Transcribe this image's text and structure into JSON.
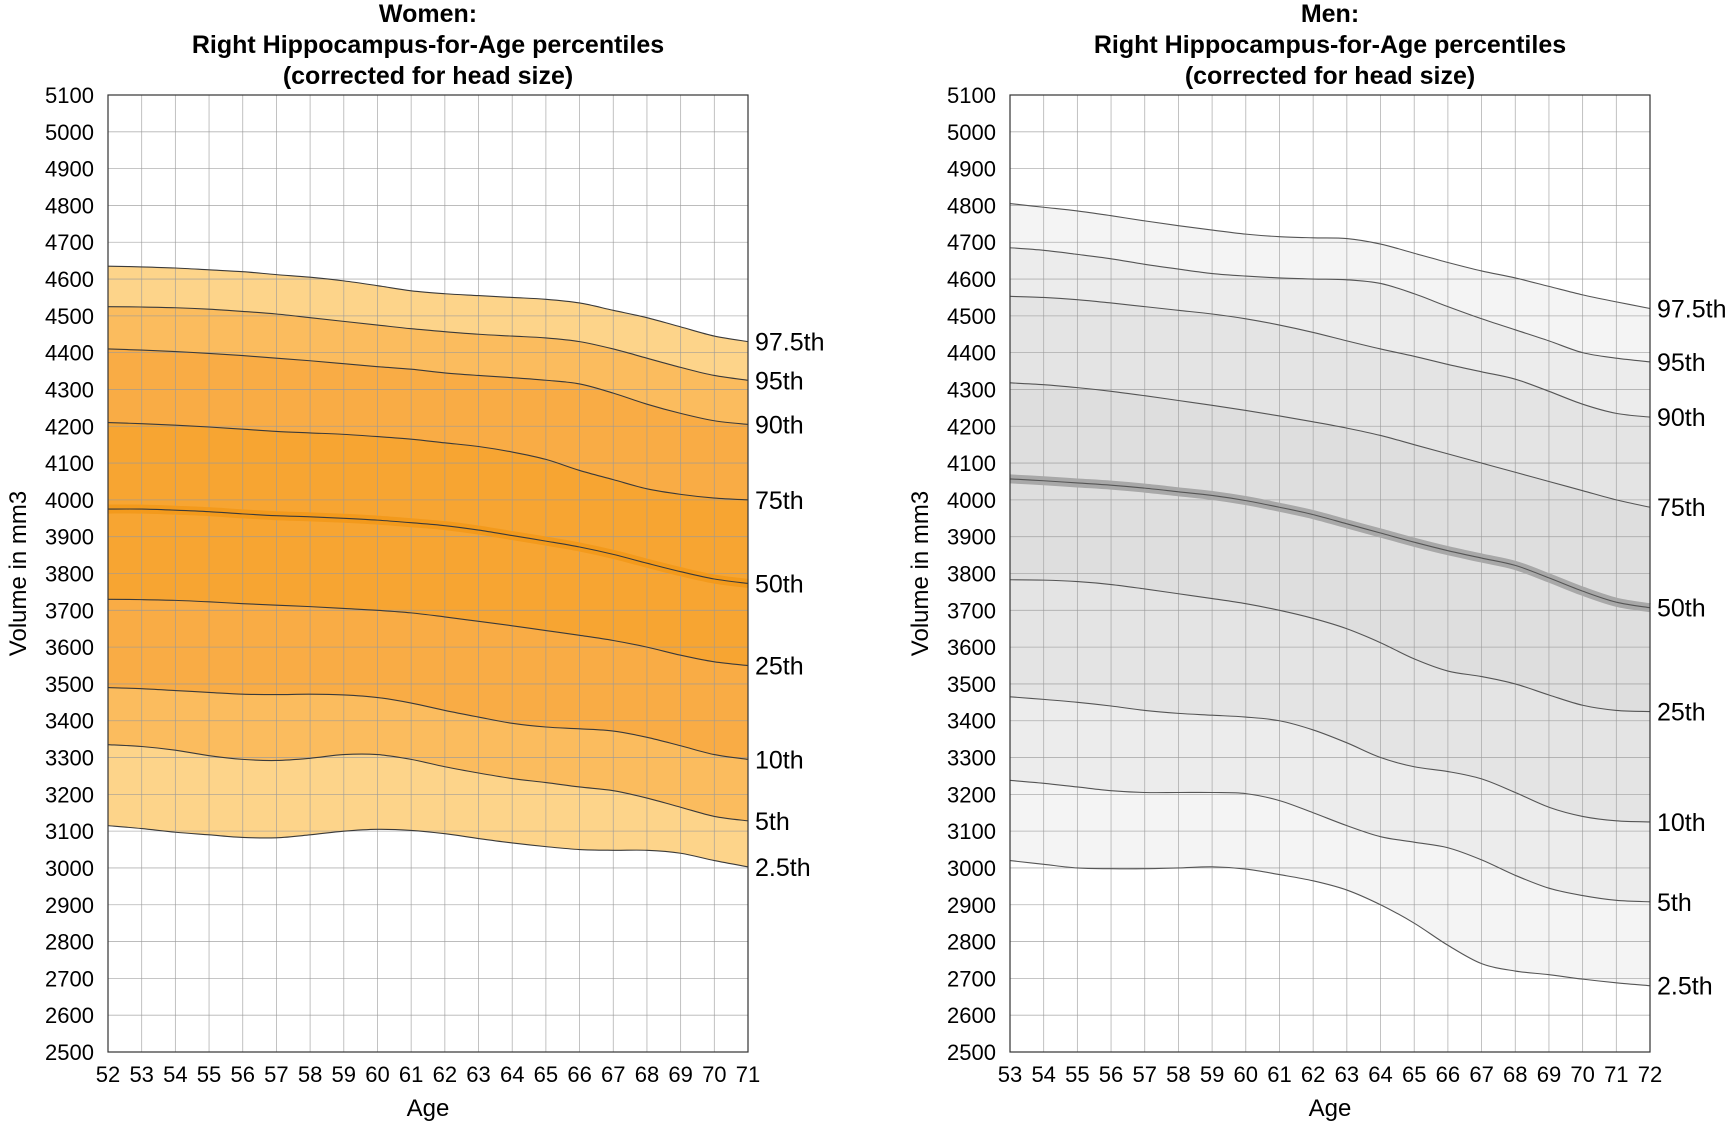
{
  "chart_data": [
    {
      "type": "area",
      "title_lines": [
        "Women:",
        "Right Hippocampus-for-Age percentiles",
        "(corrected for head size)"
      ],
      "xlabel": "Age",
      "ylabel": "Volume in mm3",
      "xlim": [
        52,
        71
      ],
      "ylim": [
        2500,
        5100
      ],
      "x_ticks": [
        52,
        53,
        54,
        55,
        56,
        57,
        58,
        59,
        60,
        61,
        62,
        63,
        64,
        65,
        66,
        67,
        68,
        69,
        70,
        71
      ],
      "y_ticks": [
        2500,
        2600,
        2700,
        2800,
        2900,
        3000,
        3100,
        3200,
        3300,
        3400,
        3500,
        3600,
        3700,
        3800,
        3900,
        4000,
        4100,
        4200,
        4300,
        4400,
        4500,
        4600,
        4700,
        4800,
        4900,
        5000,
        5100
      ],
      "grid": true,
      "colors": {
        "outer": "#fdd48a",
        "mid": "#fbbc5e",
        "inner": "#f9ac45",
        "core": "#f7a532",
        "median": "#f39a1c",
        "line": "#3a3a3a"
      },
      "series": [
        {
          "name": "97.5th",
          "x": [
            52,
            53,
            54,
            55,
            56,
            57,
            58,
            59,
            60,
            61,
            62,
            63,
            64,
            65,
            66,
            67,
            68,
            69,
            70,
            71
          ],
          "values": [
            4635,
            4633,
            4630,
            4625,
            4620,
            4612,
            4605,
            4595,
            4582,
            4568,
            4560,
            4555,
            4550,
            4545,
            4535,
            4515,
            4495,
            4470,
            4445,
            4430
          ]
        },
        {
          "name": "95th",
          "x": [
            52,
            53,
            54,
            55,
            56,
            57,
            58,
            59,
            60,
            61,
            62,
            63,
            64,
            65,
            66,
            67,
            68,
            69,
            70,
            71
          ],
          "values": [
            4525,
            4524,
            4522,
            4518,
            4512,
            4505,
            4495,
            4485,
            4475,
            4465,
            4457,
            4450,
            4445,
            4440,
            4430,
            4410,
            4385,
            4360,
            4338,
            4325
          ]
        },
        {
          "name": "90th",
          "x": [
            52,
            53,
            54,
            55,
            56,
            57,
            58,
            59,
            60,
            61,
            62,
            63,
            64,
            65,
            66,
            67,
            68,
            69,
            70,
            71
          ],
          "values": [
            4410,
            4407,
            4403,
            4398,
            4392,
            4385,
            4378,
            4370,
            4362,
            4355,
            4345,
            4338,
            4332,
            4325,
            4315,
            4290,
            4260,
            4235,
            4215,
            4205
          ]
        },
        {
          "name": "75th",
          "x": [
            52,
            53,
            54,
            55,
            56,
            57,
            58,
            59,
            60,
            61,
            62,
            63,
            64,
            65,
            66,
            67,
            68,
            69,
            70,
            71
          ],
          "values": [
            4210,
            4207,
            4203,
            4198,
            4192,
            4186,
            4182,
            4178,
            4172,
            4165,
            4155,
            4145,
            4130,
            4110,
            4080,
            4055,
            4030,
            4015,
            4005,
            4000
          ]
        },
        {
          "name": "50th",
          "x": [
            52,
            53,
            54,
            55,
            56,
            57,
            58,
            59,
            60,
            61,
            62,
            63,
            64,
            65,
            66,
            67,
            68,
            69,
            70,
            71
          ],
          "values": [
            3975,
            3975,
            3972,
            3968,
            3962,
            3957,
            3954,
            3950,
            3945,
            3938,
            3930,
            3918,
            3903,
            3888,
            3872,
            3852,
            3828,
            3805,
            3785,
            3773
          ]
        },
        {
          "name": "25th",
          "x": [
            52,
            53,
            54,
            55,
            56,
            57,
            58,
            59,
            60,
            61,
            62,
            63,
            64,
            65,
            66,
            67,
            68,
            69,
            70,
            71
          ],
          "values": [
            3730,
            3729,
            3727,
            3723,
            3718,
            3714,
            3710,
            3705,
            3700,
            3693,
            3682,
            3670,
            3658,
            3645,
            3632,
            3618,
            3600,
            3578,
            3560,
            3550
          ]
        },
        {
          "name": "10th",
          "x": [
            52,
            53,
            54,
            55,
            56,
            57,
            58,
            59,
            60,
            61,
            62,
            63,
            64,
            65,
            66,
            67,
            68,
            69,
            70,
            71
          ],
          "values": [
            3490,
            3487,
            3482,
            3477,
            3472,
            3471,
            3472,
            3470,
            3463,
            3448,
            3428,
            3410,
            3393,
            3383,
            3378,
            3372,
            3355,
            3332,
            3308,
            3295
          ]
        },
        {
          "name": "5th",
          "x": [
            52,
            53,
            54,
            55,
            56,
            57,
            58,
            59,
            60,
            61,
            62,
            63,
            64,
            65,
            66,
            67,
            68,
            69,
            70,
            71
          ],
          "values": [
            3335,
            3330,
            3320,
            3305,
            3295,
            3292,
            3298,
            3308,
            3308,
            3295,
            3275,
            3258,
            3243,
            3232,
            3220,
            3210,
            3190,
            3165,
            3140,
            3128
          ]
        },
        {
          "name": "2.5th",
          "x": [
            52,
            53,
            54,
            55,
            56,
            57,
            58,
            59,
            60,
            61,
            62,
            63,
            64,
            65,
            66,
            67,
            68,
            69,
            70,
            71
          ],
          "values": [
            3115,
            3107,
            3097,
            3090,
            3083,
            3082,
            3090,
            3100,
            3105,
            3102,
            3093,
            3080,
            3068,
            3058,
            3050,
            3048,
            3048,
            3040,
            3020,
            3003
          ]
        }
      ]
    },
    {
      "type": "area",
      "title_lines": [
        "Men:",
        "Right Hippocampus-for-Age percentiles",
        "(corrected for head size)"
      ],
      "xlabel": "Age",
      "ylabel": "Volume in mm3",
      "xlim": [
        53,
        72
      ],
      "ylim": [
        2500,
        5100
      ],
      "x_ticks": [
        53,
        54,
        55,
        56,
        57,
        58,
        59,
        60,
        61,
        62,
        63,
        64,
        65,
        66,
        67,
        68,
        69,
        70,
        71,
        72
      ],
      "y_ticks": [
        2500,
        2600,
        2700,
        2800,
        2900,
        3000,
        3100,
        3200,
        3300,
        3400,
        3500,
        3600,
        3700,
        3800,
        3900,
        4000,
        4100,
        4200,
        4300,
        4400,
        4500,
        4600,
        4700,
        4800,
        4900,
        5000,
        5100
      ],
      "grid": true,
      "colors": {
        "outer": "#f4f4f4",
        "mid": "#ececec",
        "inner": "#e4e4e4",
        "core": "#dedede",
        "median": "#a8a8a8",
        "line": "#555555"
      },
      "series": [
        {
          "name": "97.5th",
          "x": [
            53,
            54,
            55,
            56,
            57,
            58,
            59,
            60,
            61,
            62,
            63,
            64,
            65,
            66,
            67,
            68,
            69,
            70,
            71,
            72
          ],
          "values": [
            4805,
            4795,
            4785,
            4772,
            4758,
            4745,
            4733,
            4722,
            4715,
            4712,
            4710,
            4695,
            4670,
            4645,
            4622,
            4603,
            4580,
            4557,
            4538,
            4520
          ]
        },
        {
          "name": "95th",
          "x": [
            53,
            54,
            55,
            56,
            57,
            58,
            59,
            60,
            61,
            62,
            63,
            64,
            65,
            66,
            67,
            68,
            69,
            70,
            71,
            72
          ],
          "values": [
            4685,
            4678,
            4667,
            4655,
            4640,
            4627,
            4615,
            4608,
            4603,
            4600,
            4598,
            4588,
            4560,
            4525,
            4492,
            4462,
            4432,
            4400,
            4385,
            4375
          ]
        },
        {
          "name": "90th",
          "x": [
            53,
            54,
            55,
            56,
            57,
            58,
            59,
            60,
            61,
            62,
            63,
            64,
            65,
            66,
            67,
            68,
            69,
            70,
            71,
            72
          ],
          "values": [
            4553,
            4550,
            4544,
            4535,
            4525,
            4515,
            4505,
            4492,
            4475,
            4455,
            4432,
            4410,
            4390,
            4368,
            4348,
            4328,
            4295,
            4260,
            4235,
            4225
          ]
        },
        {
          "name": "75th",
          "x": [
            53,
            54,
            55,
            56,
            57,
            58,
            59,
            60,
            61,
            62,
            63,
            64,
            65,
            66,
            67,
            68,
            69,
            70,
            71,
            72
          ],
          "values": [
            4318,
            4313,
            4305,
            4295,
            4283,
            4270,
            4257,
            4243,
            4228,
            4212,
            4195,
            4175,
            4150,
            4125,
            4100,
            4075,
            4050,
            4025,
            4000,
            3980
          ]
        },
        {
          "name": "50th",
          "x": [
            53,
            54,
            55,
            56,
            57,
            58,
            59,
            60,
            61,
            62,
            63,
            64,
            65,
            66,
            67,
            68,
            69,
            70,
            71,
            72
          ],
          "values": [
            4057,
            4052,
            4046,
            4040,
            4032,
            4022,
            4012,
            3998,
            3980,
            3960,
            3935,
            3910,
            3885,
            3862,
            3842,
            3822,
            3788,
            3752,
            3722,
            3707
          ]
        },
        {
          "name": "25th",
          "x": [
            53,
            54,
            55,
            56,
            57,
            58,
            59,
            60,
            61,
            62,
            63,
            64,
            65,
            66,
            67,
            68,
            69,
            70,
            71,
            72
          ],
          "values": [
            3783,
            3782,
            3778,
            3770,
            3758,
            3745,
            3732,
            3718,
            3700,
            3678,
            3650,
            3612,
            3568,
            3535,
            3520,
            3500,
            3470,
            3442,
            3428,
            3425
          ]
        },
        {
          "name": "10th",
          "x": [
            53,
            54,
            55,
            56,
            57,
            58,
            59,
            60,
            61,
            62,
            63,
            64,
            65,
            66,
            67,
            68,
            69,
            70,
            71,
            72
          ],
          "values": [
            3465,
            3458,
            3450,
            3440,
            3428,
            3420,
            3415,
            3410,
            3400,
            3375,
            3340,
            3300,
            3275,
            3262,
            3242,
            3205,
            3165,
            3140,
            3128,
            3125
          ]
        },
        {
          "name": "5th",
          "x": [
            53,
            54,
            55,
            56,
            57,
            58,
            59,
            60,
            61,
            62,
            63,
            64,
            65,
            66,
            67,
            68,
            69,
            70,
            71,
            72
          ],
          "values": [
            3238,
            3230,
            3220,
            3210,
            3205,
            3205,
            3205,
            3202,
            3183,
            3150,
            3115,
            3085,
            3070,
            3055,
            3022,
            2980,
            2945,
            2925,
            2912,
            2908
          ]
        },
        {
          "name": "2.5th",
          "x": [
            53,
            54,
            55,
            56,
            57,
            58,
            59,
            60,
            61,
            62,
            63,
            64,
            65,
            66,
            67,
            68,
            69,
            70,
            71,
            72
          ],
          "values": [
            3020,
            3010,
            3000,
            2998,
            2998,
            3000,
            3003,
            2997,
            2982,
            2965,
            2940,
            2900,
            2850,
            2790,
            2740,
            2720,
            2710,
            2698,
            2688,
            2680
          ]
        }
      ]
    }
  ]
}
